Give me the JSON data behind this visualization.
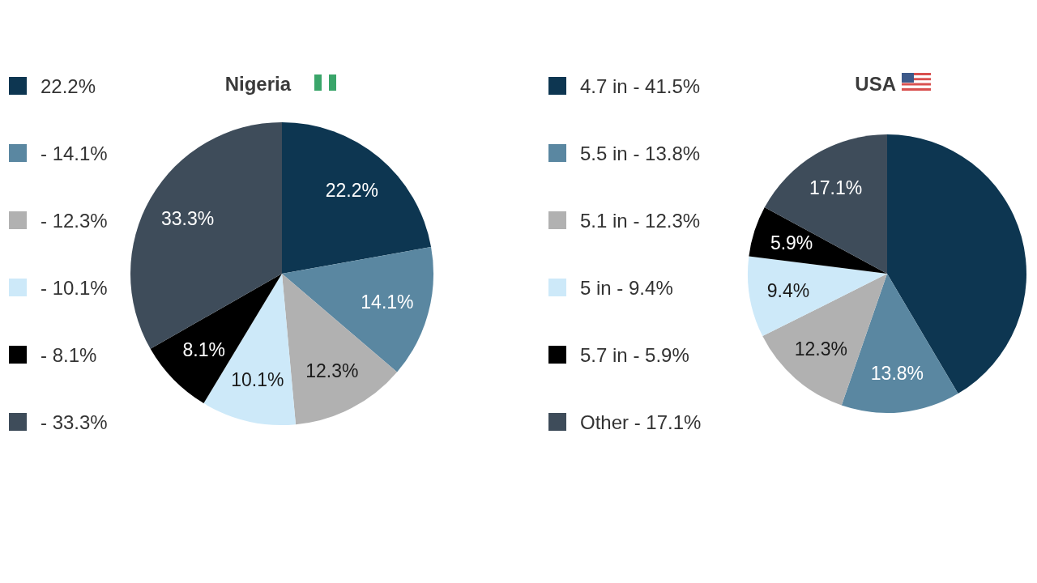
{
  "chart_data": [
    {
      "type": "pie",
      "title": "Nigeria",
      "categories": [
        "22.2%",
        "- 14.1%",
        "- 12.3%",
        "- 10.1%",
        "- 8.1%",
        "- 33.3%"
      ],
      "values": [
        22.2,
        14.1,
        12.3,
        10.1,
        8.1,
        33.3
      ],
      "colors": [
        "#0d3651",
        "#5a87a1",
        "#b1b1b1",
        "#cde9f9",
        "#000000",
        "#3e4c5a"
      ],
      "value_labels": [
        "22.2%",
        "14.1%",
        "12.3%",
        "10.1%",
        "8.1%",
        "33.3%"
      ],
      "legend": "left"
    },
    {
      "type": "pie",
      "title": "USA",
      "categories": [
        "4.7 in - 41.5%",
        "5.5 in - 13.8%",
        "5.1 in - 12.3%",
        "5 in - 9.4%",
        "5.7 in - 5.9%",
        "Other - 17.1%"
      ],
      "values": [
        41.5,
        13.8,
        12.3,
        9.4,
        5.9,
        17.1
      ],
      "colors": [
        "#0d3651",
        "#5a87a1",
        "#b1b1b1",
        "#cde9f9",
        "#000000",
        "#3e4c5a"
      ],
      "value_labels": [
        null,
        "13.8%",
        "12.3%",
        "9.4%",
        "5.9%",
        "17.1%"
      ],
      "legend": "left"
    }
  ]
}
